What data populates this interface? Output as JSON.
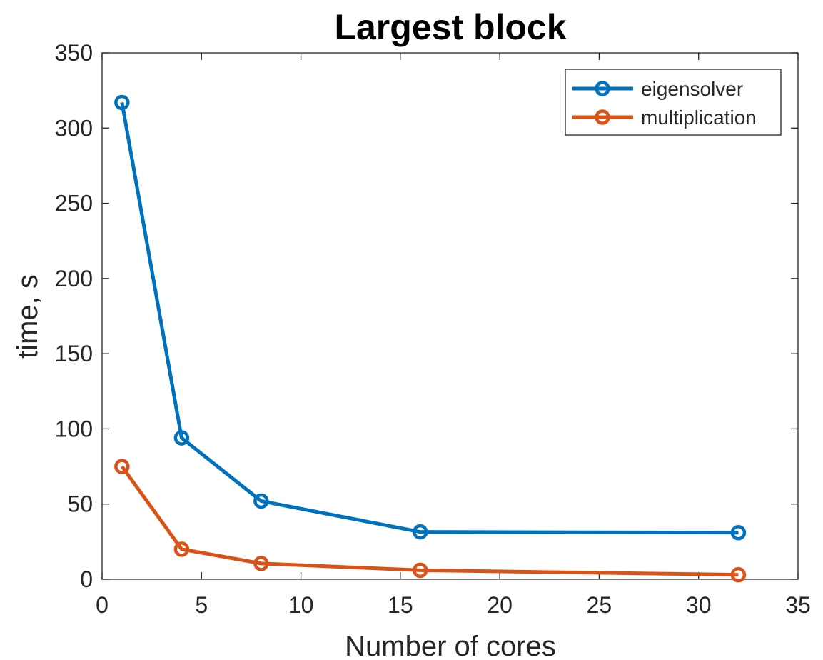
{
  "chart_data": {
    "type": "line",
    "title": "Largest block",
    "xlabel": "Number of cores",
    "ylabel": "time, s",
    "xlim": [
      0,
      35
    ],
    "ylim": [
      0,
      350
    ],
    "xticks": [
      0,
      5,
      10,
      15,
      20,
      25,
      30,
      35
    ],
    "yticks": [
      0,
      50,
      100,
      150,
      200,
      250,
      300,
      350
    ],
    "grid": false,
    "legend_position": "top-right",
    "x": [
      1,
      4,
      8,
      16,
      32
    ],
    "series": [
      {
        "name": "eigensolver",
        "color": "#0072BD",
        "marker": "circle",
        "values": [
          317,
          94,
          52,
          31.5,
          31
        ]
      },
      {
        "name": "multiplication",
        "color": "#D95319",
        "marker": "circle",
        "values": [
          75,
          20,
          10.5,
          6,
          3
        ]
      }
    ]
  }
}
